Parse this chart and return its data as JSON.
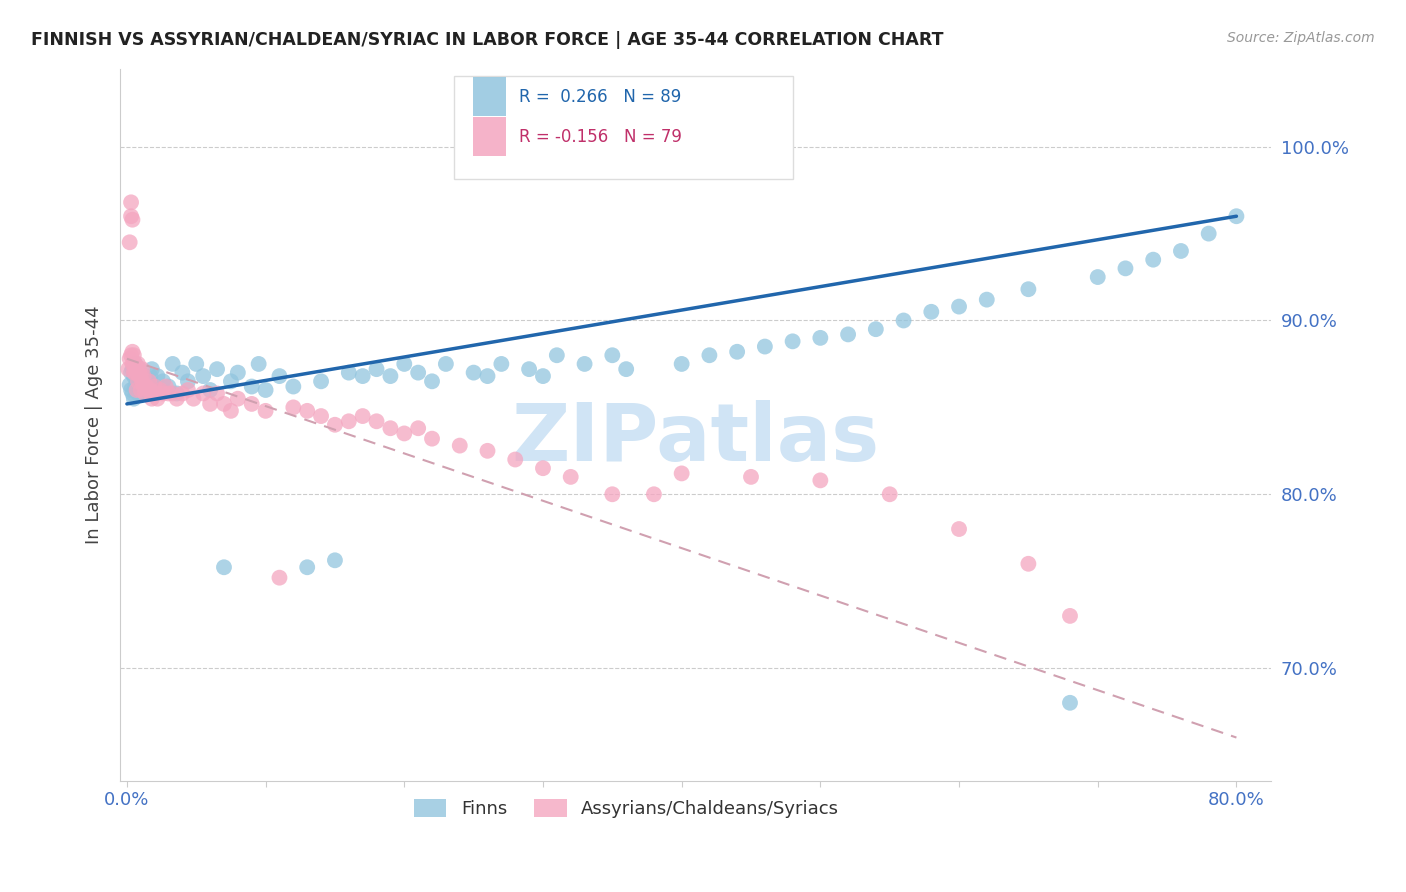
{
  "title": "FINNISH VS ASSYRIAN/CHALDEAN/SYRIAC IN LABOR FORCE | AGE 35-44 CORRELATION CHART",
  "source": "Source: ZipAtlas.com",
  "ylabel": "In Labor Force | Age 35-44",
  "blue_r": 0.266,
  "blue_n": 89,
  "pink_r": -0.156,
  "pink_n": 79,
  "blue_color": "#92c5de",
  "pink_color": "#f4a6c0",
  "blue_line_color": "#2166ac",
  "pink_line_color": "#d6604d",
  "pink_dash_color": "#d0a0b0",
  "legend_label_blue": "Finns",
  "legend_label_pink": "Assyrians/Chaldeans/Syriacs",
  "watermark_color": "#d0e4f5",
  "ytick_color": "#4472c4",
  "xlim": [
    -0.005,
    0.825
  ],
  "ylim": [
    0.635,
    1.045
  ],
  "yticks": [
    0.7,
    0.8,
    0.9,
    1.0
  ],
  "ytick_labels": [
    "70.0%",
    "80.0%",
    "90.0%",
    "100.0%"
  ],
  "blue_trend_x": [
    0.0,
    0.8
  ],
  "blue_trend_y": [
    0.852,
    0.96
  ],
  "pink_trend_x": [
    0.0,
    0.8
  ],
  "pink_trend_y": [
    0.878,
    0.66
  ]
}
